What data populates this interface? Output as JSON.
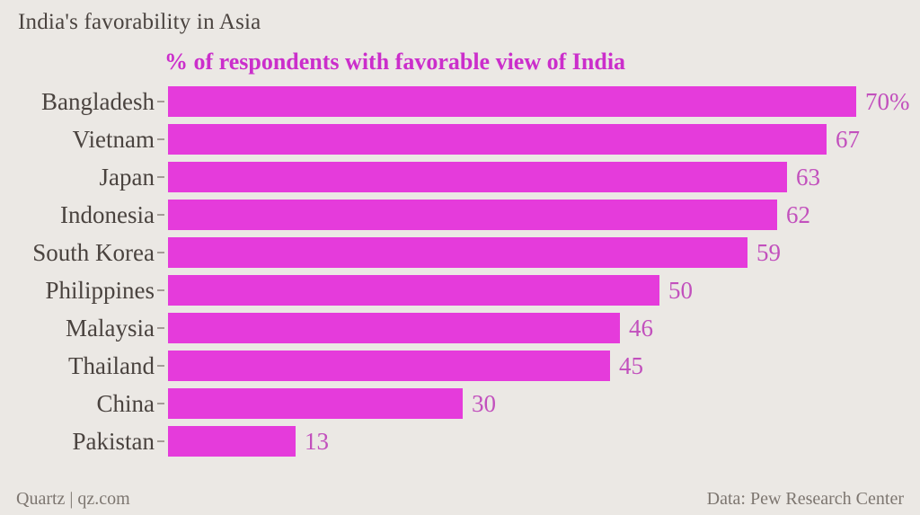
{
  "page": {
    "title": "India's favorability in Asia",
    "footer_left": "Quartz | qz.com",
    "footer_right": "Data: Pew Research Center"
  },
  "colors": {
    "background": "#ebe8e4",
    "bar": "#e53bdb",
    "subtitle": "#cb2ecb",
    "value_label": "#c250bd",
    "title_text": "#4a433f",
    "tick": "#a39c96",
    "footer_text": "#7d7670"
  },
  "chart_data": {
    "type": "bar",
    "orientation": "horizontal",
    "title": "India's favorability in Asia",
    "subtitle": "% of respondents with favorable view of India",
    "categories": [
      "Bangladesh",
      "Vietnam",
      "Japan",
      "Indonesia",
      "South Korea",
      "Philippines",
      "Malaysia",
      "Thailand",
      "China",
      "Pakistan"
    ],
    "values": [
      70,
      67,
      63,
      62,
      59,
      50,
      46,
      45,
      30,
      13
    ],
    "value_labels": [
      "70%",
      "67",
      "63",
      "62",
      "59",
      "50",
      "46",
      "45",
      "30",
      "13"
    ],
    "xlabel": "",
    "ylabel": "",
    "xlim": [
      0,
      75
    ],
    "grid": false,
    "legend": false,
    "source": "Pew Research Center"
  }
}
